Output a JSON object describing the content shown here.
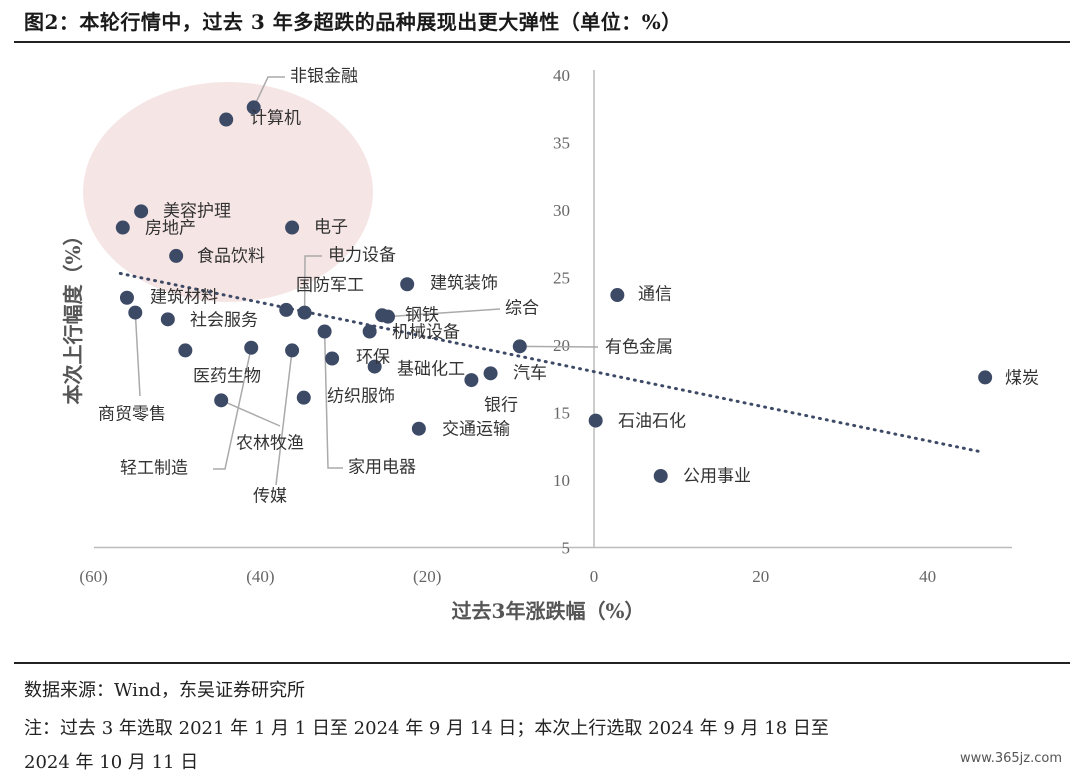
{
  "header": {
    "title": "图2：本轮行情中，过去 3 年多超跌的品种展现出更大弹性（单位：%）"
  },
  "footer": {
    "source": "数据来源：Wind，东吴证券研究所",
    "note_line1": "注：过去 3 年选取 2021 年 1 月 1 日至 2024 年 9 月 14 日；本次上行选取 2024 年 9 月 18 日至",
    "note_line2": "2024 年 10 月 11 日",
    "watermark": "www.365jz.com"
  },
  "chart_data": {
    "type": "scatter",
    "xlabel": "过去3年涨跌幅（%）",
    "ylabel": "本次上行幅度（%）",
    "xlim": [
      -60,
      50
    ],
    "ylim": [
      5,
      40
    ],
    "x_ticks": [
      {
        "value": -60,
        "label": "(60)"
      },
      {
        "value": -40,
        "label": "(40)"
      },
      {
        "value": -20,
        "label": "(20)"
      },
      {
        "value": 0,
        "label": "0"
      },
      {
        "value": 20,
        "label": "20"
      },
      {
        "value": 40,
        "label": "40"
      }
    ],
    "y_ticks": [
      {
        "value": 5,
        "label": "5"
      },
      {
        "value": 10,
        "label": "10"
      },
      {
        "value": 15,
        "label": "15"
      },
      {
        "value": 20,
        "label": "20"
      },
      {
        "value": 25,
        "label": "25"
      },
      {
        "value": 30,
        "label": "30"
      },
      {
        "value": 35,
        "label": "35"
      },
      {
        "value": 40,
        "label": "40"
      }
    ],
    "grid": false,
    "colors": {
      "point": "#3d4a66",
      "negative_tick": "#e00000",
      "trendline": "#3d4a66",
      "highlight": "#f3dcdc"
    },
    "trendline": {
      "style": "dotted",
      "from": [
        -56.8,
        25.3
      ],
      "to": [
        46.3,
        12.1
      ]
    },
    "highlight_region": "top-left ellipse",
    "points": [
      {
        "label": "非银金融",
        "x": -40.8,
        "y": 37.6
      },
      {
        "label": "计算机",
        "x": -44.1,
        "y": 36.7
      },
      {
        "label": "美容护理",
        "x": -54.3,
        "y": 29.9
      },
      {
        "label": "房地产",
        "x": -56.5,
        "y": 28.7
      },
      {
        "label": "电子",
        "x": -36.2,
        "y": 28.7
      },
      {
        "label": "食品饮料",
        "x": -50.1,
        "y": 26.6
      },
      {
        "label": "电力设备",
        "x": -34.7,
        "y": 22.4
      },
      {
        "label": "国防军工",
        "x": -36.9,
        "y": 22.6
      },
      {
        "label": "建筑装饰",
        "x": -22.4,
        "y": 24.5
      },
      {
        "label": "通信",
        "x": 2.8,
        "y": 23.7
      },
      {
        "label": "建筑材料",
        "x": -56.0,
        "y": 23.5
      },
      {
        "label": "综合",
        "x": -24.7,
        "y": 22.1
      },
      {
        "label": "钢铁",
        "x": -25.4,
        "y": 22.2
      },
      {
        "label": "社会服务",
        "x": -51.1,
        "y": 21.9
      },
      {
        "label": "机械设备",
        "x": -26.9,
        "y": 21.0
      },
      {
        "label": "有色金属",
        "x": -8.9,
        "y": 19.9
      },
      {
        "label": "医药生物",
        "x": -49.0,
        "y": 19.6
      },
      {
        "label": "环保",
        "x": -31.4,
        "y": 19.0
      },
      {
        "label": "基础化工",
        "x": -26.3,
        "y": 18.4
      },
      {
        "label": "汽车",
        "x": -12.4,
        "y": 17.9
      },
      {
        "label": "银行",
        "x": -14.7,
        "y": 17.4
      },
      {
        "label": "煤炭",
        "x": 46.9,
        "y": 17.6
      },
      {
        "label": "纺织服饰",
        "x": -34.8,
        "y": 16.1
      },
      {
        "label": "石油石化",
        "x": 0.2,
        "y": 14.4
      },
      {
        "label": "交通运输",
        "x": -21.0,
        "y": 13.8
      },
      {
        "label": "公用事业",
        "x": 8.0,
        "y": 10.3
      },
      {
        "label": "商贸零售",
        "x": -55.0,
        "y": 22.4
      },
      {
        "label": "轻工制造",
        "x": -41.1,
        "y": 19.8
      },
      {
        "label": "农林牧渔",
        "x": -44.7,
        "y": 15.9
      },
      {
        "label": "传媒",
        "x": -36.2,
        "y": 19.6
      },
      {
        "label": "家用电器",
        "x": -32.3,
        "y": 21.0
      }
    ]
  }
}
